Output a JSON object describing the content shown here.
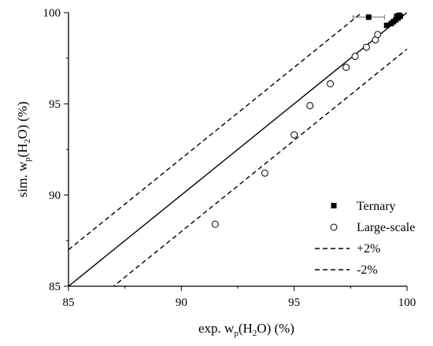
{
  "chart_data": {
    "type": "scatter",
    "xlabel": {
      "prefix": "exp. w",
      "sub": "p",
      "middle": "(H",
      "sub2": "2",
      "suffix": "O) (%)"
    },
    "ylabel": {
      "prefix": "sim. w",
      "sub": "p",
      "middle": "(H",
      "sub2": "2",
      "suffix": "O) (%)"
    },
    "xlim": [
      85,
      100
    ],
    "ylim": [
      85,
      100
    ],
    "xticks": [
      85,
      90,
      95,
      100
    ],
    "yticks": [
      85,
      90,
      95,
      100
    ],
    "grid": false,
    "legend_position": "bottom-right",
    "series": [
      {
        "name": "Ternary",
        "marker": "filled-square",
        "color": "#000000",
        "points": [
          {
            "x": 98.3,
            "y": 99.75,
            "xerr": 0.7
          },
          {
            "x": 99.1,
            "y": 99.3
          },
          {
            "x": 99.3,
            "y": 99.4
          },
          {
            "x": 99.4,
            "y": 99.5
          },
          {
            "x": 99.5,
            "y": 99.6
          },
          {
            "x": 99.55,
            "y": 99.8
          },
          {
            "x": 99.6,
            "y": 99.7
          },
          {
            "x": 99.65,
            "y": 99.85
          },
          {
            "x": 99.7,
            "y": 99.8
          }
        ]
      },
      {
        "name": "Large-scale",
        "marker": "open-circle",
        "color": "#000000",
        "points": [
          {
            "x": 91.5,
            "y": 88.4
          },
          {
            "x": 93.7,
            "y": 91.2
          },
          {
            "x": 95.0,
            "y": 93.3
          },
          {
            "x": 95.7,
            "y": 94.9
          },
          {
            "x": 96.6,
            "y": 96.1
          },
          {
            "x": 97.3,
            "y": 97.0
          },
          {
            "x": 97.7,
            "y": 97.6
          },
          {
            "x": 98.2,
            "y": 98.1
          },
          {
            "x": 98.6,
            "y": 98.5
          },
          {
            "x": 98.7,
            "y": 98.8
          }
        ]
      }
    ],
    "reference_lines": [
      {
        "name": "identity",
        "legend": false,
        "style": "solid",
        "offset": 0
      },
      {
        "name": "+2%",
        "legend": true,
        "style": "dashed",
        "offset": 2
      },
      {
        "name": "-2%",
        "legend": true,
        "style": "dashed",
        "offset": -2
      }
    ]
  }
}
